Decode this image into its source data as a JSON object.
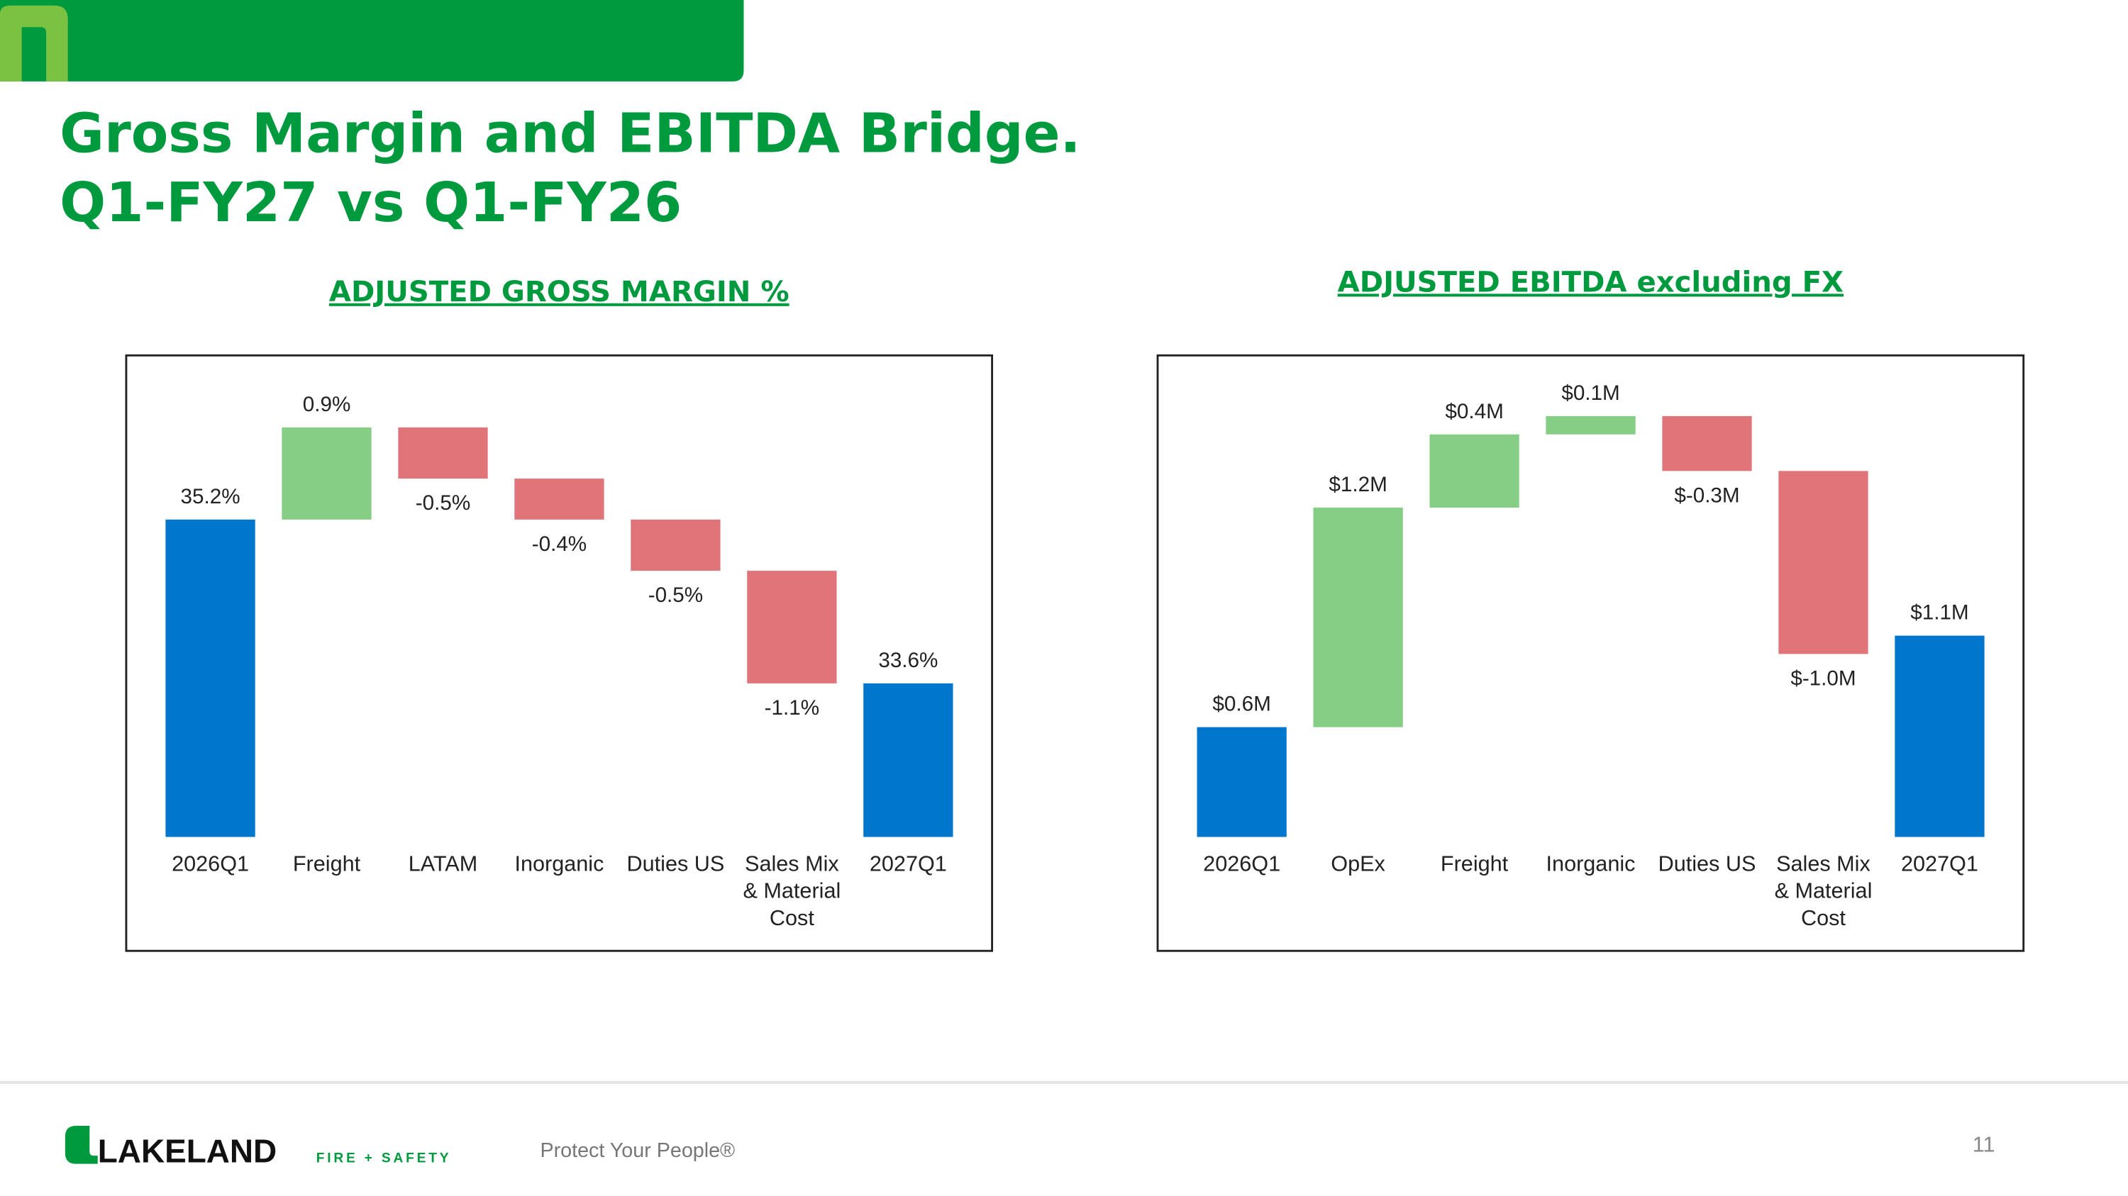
{
  "title": [
    "Gross Margin and EBITDA Bridge.",
    "Q1-FY27 vs Q1-FY26"
  ],
  "chart_data": [
    {
      "type": "waterfall",
      "title": "ADJUSTED GROSS MARGIN %",
      "categories": [
        "2026Q1",
        "Freight",
        "LATAM",
        "Inorganic",
        "Duties US",
        "Sales Mix & Material Cost",
        "2027Q1"
      ],
      "values": [
        35.2,
        0.9,
        -0.5,
        -0.4,
        -0.5,
        -1.1,
        33.6
      ],
      "value_labels": [
        "35.2%",
        "0.9%",
        "-0.5%",
        "-0.4%",
        "-0.5%",
        "-1.1%",
        "33.6%"
      ],
      "measure": [
        "total",
        "relative",
        "relative",
        "relative",
        "relative",
        "relative",
        "total"
      ],
      "colors": {
        "increase": "#86cd86",
        "decrease": "#e07479",
        "total": "#0077cc"
      },
      "ylim": [
        32.1,
        36.3
      ]
    },
    {
      "type": "waterfall",
      "title": "ADJUSTED EBITDA excluding FX",
      "categories": [
        "2026Q1",
        "OpEx",
        "Freight",
        "Inorganic",
        "Duties US",
        "Sales Mix & Material Cost",
        "2027Q1"
      ],
      "values": [
        0.6,
        1.2,
        0.4,
        0.1,
        -0.3,
        -1.0,
        1.1
      ],
      "value_labels": [
        "$0.6M",
        "$1.2M",
        "$0.4M",
        "$0.1M",
        "$-0.3M",
        "$-1.0M",
        "$1.1M"
      ],
      "measure": [
        "total",
        "relative",
        "relative",
        "relative",
        "relative",
        "relative",
        "total"
      ],
      "colors": {
        "increase": "#86cd86",
        "decrease": "#e07479",
        "total": "#0077cc"
      },
      "ylim": [
        0,
        2.35
      ]
    }
  ],
  "footer": {
    "brand": "LAKELAND",
    "brand_sub": "FIRE + SAFETY",
    "tagline": "Protect Your People®",
    "page": "11"
  }
}
